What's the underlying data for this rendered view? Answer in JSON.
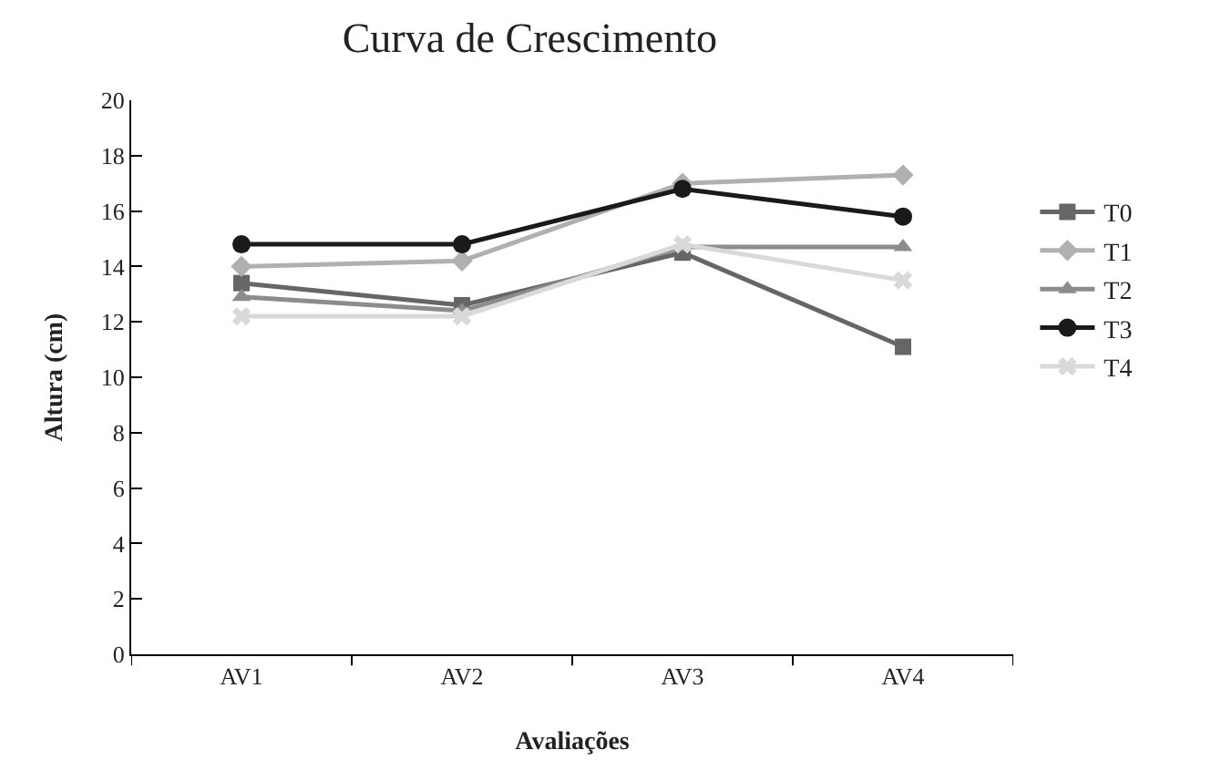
{
  "chart_data": {
    "type": "line",
    "title": "Curva de Crescimento",
    "xlabel": "Avaliações",
    "ylabel": "Altura (cm)",
    "categories": [
      "AV1",
      "AV2",
      "AV3",
      "AV4"
    ],
    "series": [
      {
        "name": "T0",
        "color": "#666666",
        "marker": "square",
        "values": [
          13.4,
          12.6,
          14.5,
          11.1
        ]
      },
      {
        "name": "T1",
        "color": "#b0b0b0",
        "marker": "diamond",
        "values": [
          14.0,
          14.2,
          17.0,
          17.3
        ]
      },
      {
        "name": "T2",
        "color": "#8c8c8c",
        "marker": "triangle",
        "values": [
          12.9,
          12.4,
          14.7,
          14.7
        ]
      },
      {
        "name": "T3",
        "color": "#1a1a1a",
        "marker": "circle",
        "values": [
          14.8,
          14.8,
          16.8,
          15.8
        ]
      },
      {
        "name": "T4",
        "color": "#d9d9d9",
        "marker": "cross",
        "values": [
          12.2,
          12.2,
          14.8,
          13.5
        ]
      }
    ],
    "ylim": [
      0,
      20
    ],
    "yticks": [
      0,
      2,
      4,
      6,
      8,
      10,
      12,
      14,
      16,
      18,
      20
    ],
    "grid": false,
    "legend": "right",
    "line_style": "solid"
  }
}
